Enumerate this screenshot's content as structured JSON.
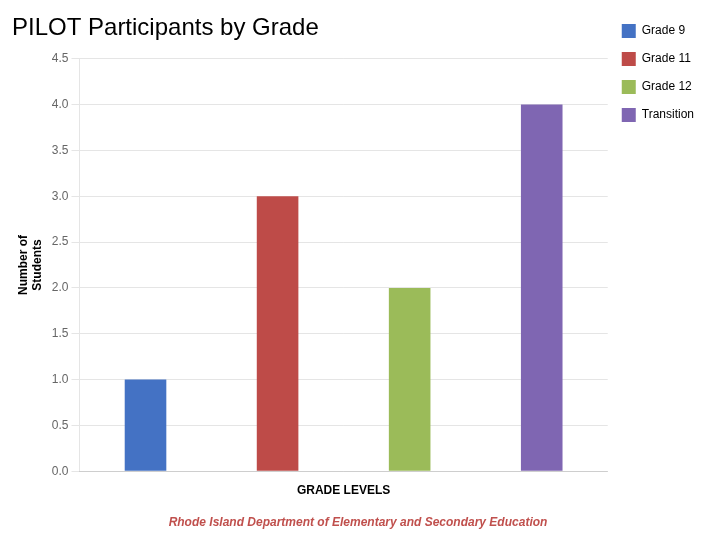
{
  "chart_data": {
    "type": "bar",
    "title": "PILOT Participants by Grade",
    "categories": [
      "Grade 9",
      "Grade 11",
      "Grade 12",
      "Transition"
    ],
    "values": [
      1,
      3,
      2,
      4
    ],
    "colors": [
      "#4472C4",
      "#BE4B48",
      "#9BBB59",
      "#7F66B2"
    ],
    "xlabel": "GRADE LEVELS",
    "ylabel": "Number of\nStudents",
    "ylim": [
      0,
      4.5
    ],
    "yticks": [
      {
        "value": 0,
        "label": "0.0"
      },
      0.5,
      {
        "value": 1,
        "label": "1.0"
      },
      1.5,
      {
        "value": 2,
        "label": "2.0"
      },
      2.5,
      {
        "value": 3,
        "label": "3.0"
      },
      3.5,
      {
        "value": 4,
        "label": "4.0"
      },
      4.5
    ],
    "grid": true,
    "legend": "right",
    "tick_labels": "y",
    "annotations": [
      {
        "text": "Rhode Island Department of Elementary and Secondary Education",
        "color": "#C0504D"
      }
    ]
  }
}
